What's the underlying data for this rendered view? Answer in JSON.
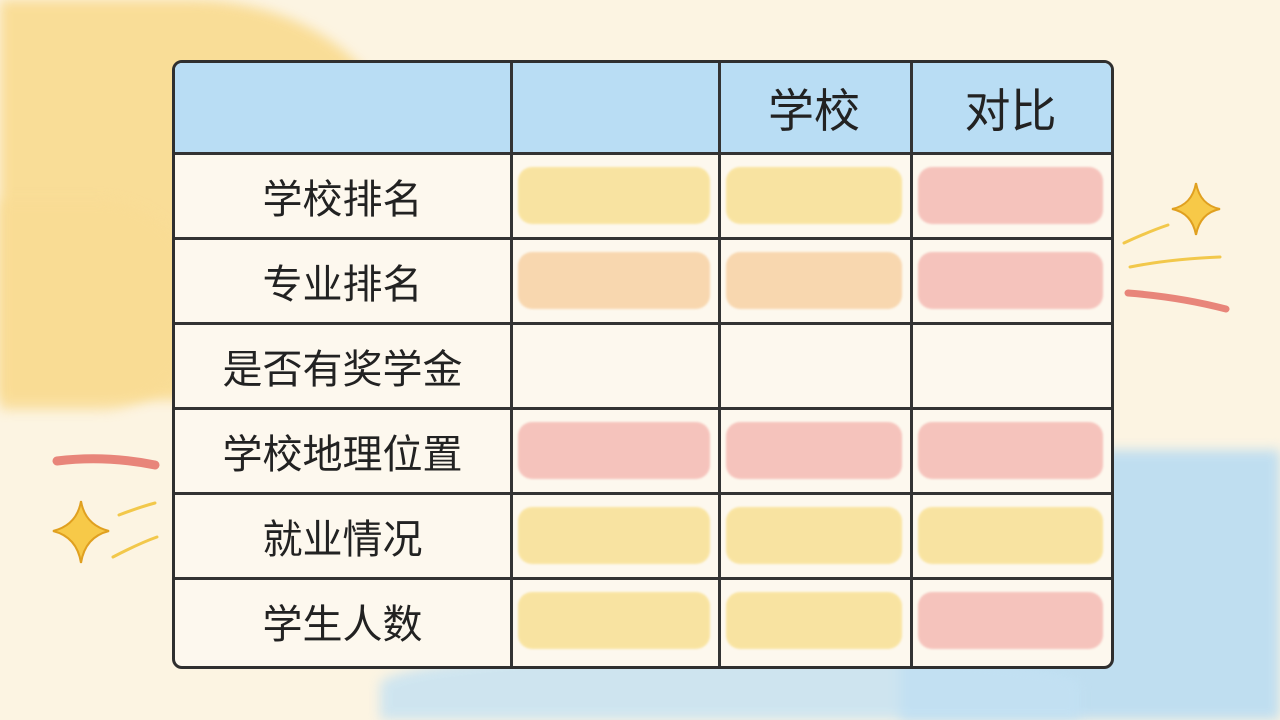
{
  "colors": {
    "yellow": "#f8df8e",
    "peach": "#f7cfa0",
    "pink": "#f4b6b0",
    "header": "#b9ddf4",
    "none": "transparent"
  },
  "header": [
    "",
    "",
    "学校",
    "对比"
  ],
  "rows": [
    {
      "label": "学校排名",
      "highlights": [
        "yellow",
        "yellow",
        "pink"
      ]
    },
    {
      "label": "专业排名",
      "highlights": [
        "peach",
        "peach",
        "pink"
      ]
    },
    {
      "label": "是否有奖学金",
      "highlights": [
        "none",
        "none",
        "none"
      ]
    },
    {
      "label": "学校地理位置",
      "highlights": [
        "pink",
        "pink",
        "pink"
      ]
    },
    {
      "label": "就业情况",
      "highlights": [
        "yellow",
        "yellow",
        "yellow"
      ]
    },
    {
      "label": "学生人数",
      "highlights": [
        "yellow",
        "yellow",
        "pink"
      ]
    }
  ],
  "decorations": [
    "sparkle-icon",
    "sparkle-icon"
  ]
}
